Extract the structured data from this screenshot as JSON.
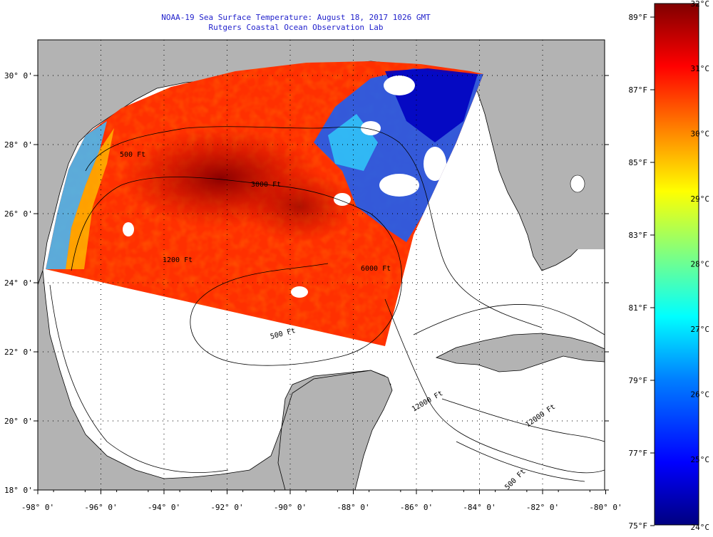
{
  "title": {
    "line1": "NOAA-19 Sea Surface Temperature:  August 18, 2017 1026 GMT",
    "line2": "Rutgers Coastal Ocean Observation Lab"
  },
  "axes": {
    "lon_labels": [
      "-98° 0'",
      "-96° 0'",
      "-94° 0'",
      "-92° 0'",
      "-90° 0'",
      "-88° 0'",
      "-86° 0'",
      "-84° 0'",
      "-82° 0'",
      "-80° 0'"
    ],
    "lat_labels": [
      "30° 0'",
      "28° 0'",
      "26° 0'",
      "24° 0'",
      "22° 0'",
      "20° 0'",
      "18° 0'"
    ]
  },
  "contour_labels": [
    "500 Ft",
    "1200 Ft",
    "3000 Ft",
    "6000 Ft",
    "12000 Ft",
    "12000 Ft",
    "500 Ft",
    "500 Ft"
  ],
  "colorbar": {
    "fahrenheit": [
      "89°F",
      "87°F",
      "85°F",
      "83°F",
      "81°F",
      "79°F",
      "77°F",
      "75°F"
    ],
    "celsius": [
      "32°C",
      "31°C",
      "30°C",
      "29°C",
      "28°C",
      "27°C",
      "26°C",
      "25°C",
      "24°C"
    ],
    "colors": [
      "#000080",
      "#0000ff",
      "#0080ff",
      "#00ffff",
      "#80ff80",
      "#ffff00",
      "#ff8000",
      "#ff0000",
      "#800000"
    ]
  },
  "colors": {
    "land": "#b3b3b3",
    "ocean": "#ffffff",
    "title": "#2222cc"
  }
}
